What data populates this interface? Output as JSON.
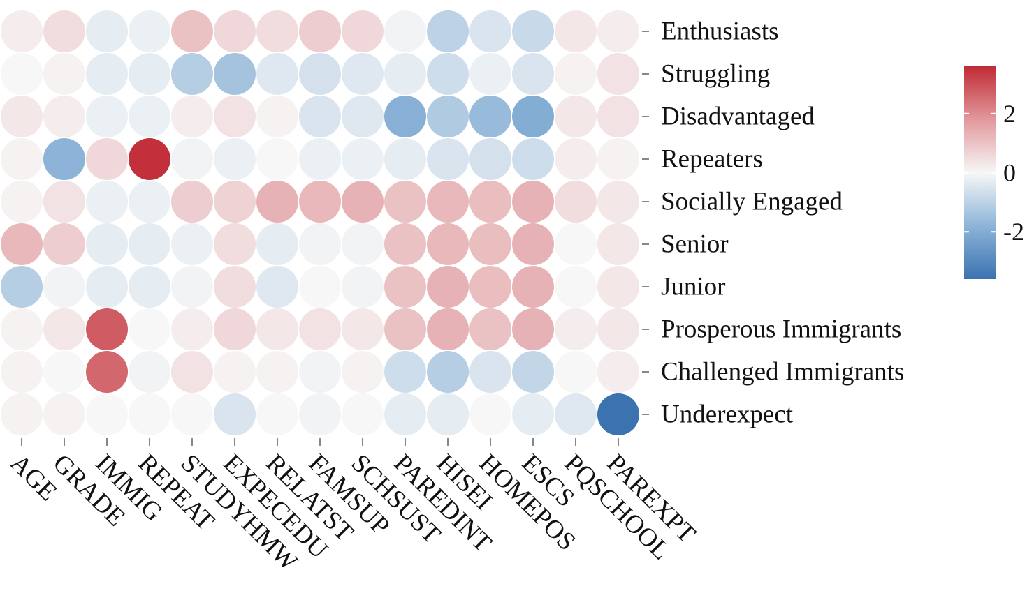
{
  "chart_data": {
    "type": "heatmap",
    "title": "",
    "xlabel": "",
    "ylabel": "",
    "mark": "circle",
    "rows": [
      "Enthusiasts",
      "Struggling",
      "Disadvantaged",
      "Repeaters",
      "Socially Engaged",
      "Senior",
      "Junior",
      "Prosperous Immigrants",
      "Challenged Immigrants",
      "Underexpect"
    ],
    "columns": [
      "AGE",
      "GRADE",
      "IMMIG",
      "REPEAT",
      "STUDYHMW",
      "EXPECEDU",
      "RELATST",
      "FAMSUP",
      "SCHSUST",
      "PAREDINT",
      "HISEI",
      "HOMEPOS",
      "ESCS",
      "PQSCHOOL",
      "PAREXPT"
    ],
    "values": [
      [
        0.2,
        0.5,
        -0.3,
        -0.2,
        1.0,
        0.6,
        0.5,
        0.8,
        0.6,
        -0.1,
        -1.0,
        -0.5,
        -0.8,
        0.3,
        0.2
      ],
      [
        0.0,
        0.1,
        -0.3,
        -0.3,
        -1.1,
        -1.4,
        -0.4,
        -0.6,
        -0.4,
        -0.3,
        -0.7,
        -0.2,
        -0.5,
        0.1,
        0.4
      ],
      [
        0.3,
        0.2,
        -0.2,
        -0.2,
        0.2,
        0.4,
        0.1,
        -0.5,
        -0.4,
        -1.9,
        -1.2,
        -1.6,
        -2.0,
        0.3,
        0.4
      ],
      [
        0.1,
        -1.8,
        0.6,
        3.5,
        -0.1,
        -0.2,
        0.0,
        -0.2,
        -0.2,
        -0.3,
        -0.5,
        -0.6,
        -0.7,
        0.2,
        0.1
      ],
      [
        0.1,
        0.4,
        -0.2,
        -0.2,
        0.8,
        0.7,
        1.3,
        1.2,
        1.3,
        1.0,
        1.2,
        1.1,
        1.3,
        0.5,
        0.3
      ],
      [
        1.2,
        0.8,
        -0.3,
        -0.3,
        -0.2,
        0.5,
        -0.3,
        -0.1,
        -0.1,
        1.0,
        1.2,
        1.1,
        1.3,
        0.0,
        0.3
      ],
      [
        -1.1,
        -0.1,
        -0.3,
        -0.3,
        -0.1,
        0.5,
        -0.4,
        0.0,
        -0.1,
        1.0,
        1.3,
        1.1,
        1.3,
        0.0,
        0.3
      ],
      [
        0.1,
        0.3,
        2.8,
        0.0,
        0.2,
        0.6,
        0.3,
        0.4,
        0.3,
        1.0,
        1.3,
        1.0,
        1.3,
        0.2,
        0.3
      ],
      [
        0.1,
        0.0,
        2.6,
        -0.1,
        0.4,
        0.1,
        0.1,
        -0.1,
        0.1,
        -0.7,
        -1.1,
        -0.5,
        -0.9,
        0.0,
        0.2
      ],
      [
        0.1,
        0.1,
        0.0,
        0.0,
        0.0,
        -0.5,
        0.0,
        -0.1,
        0.0,
        -0.3,
        -0.3,
        0.0,
        -0.3,
        -0.4,
        -3.6
      ]
    ],
    "colorbar": {
      "min": -3.6,
      "max": 3.6,
      "ticks": [
        2,
        0,
        -2
      ],
      "tick_labels": [
        "2",
        "0",
        "-2"
      ],
      "colormap": [
        "#3b73b0",
        "#8db4d8",
        "#f7f7f7",
        "#e1989c",
        "#c02b35"
      ]
    },
    "grid": false,
    "legend_position": "right"
  }
}
